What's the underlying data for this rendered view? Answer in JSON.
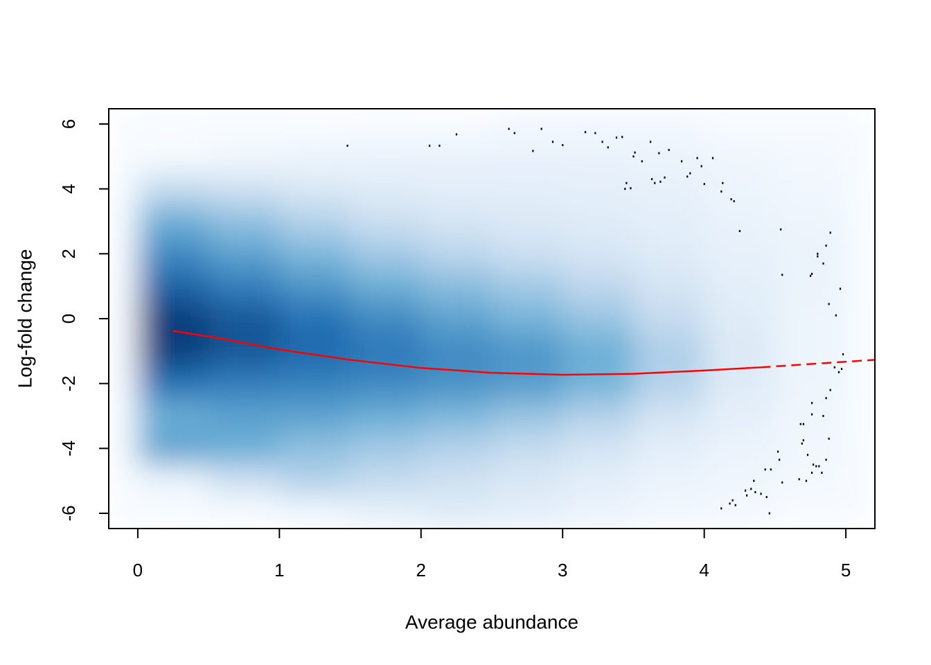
{
  "chart_data": {
    "type": "smoothscatter",
    "xlabel": "Average abundance",
    "ylabel": "Log-fold change",
    "xlim": [
      -0.205,
      5.205
    ],
    "ylim": [
      -6.47,
      6.47
    ],
    "xticks": [
      0,
      1,
      2,
      3,
      4,
      5
    ],
    "yticks": [
      -6,
      -4,
      -2,
      0,
      2,
      4,
      6
    ],
    "colors": [
      "#f7fbff",
      "#c6dbef",
      "#6baed6",
      "#2171b5",
      "#08306b"
    ],
    "density": {
      "x": [
        0.25,
        0.75,
        1.25,
        1.75,
        2.25,
        2.75,
        3.25,
        3.75,
        4.25,
        4.75
      ],
      "y": [
        6,
        5,
        4,
        3,
        2,
        1,
        0,
        -1,
        -2,
        -3,
        -4,
        -5,
        -6
      ],
      "values": [
        [
          0,
          0,
          0,
          0,
          0,
          0.02,
          0.02,
          0.02,
          0,
          0
        ],
        [
          0,
          0.03,
          0.05,
          0.06,
          0.07,
          0.07,
          0.07,
          0.06,
          0.04,
          0.02
        ],
        [
          0.25,
          0.2,
          0.15,
          0.12,
          0.1,
          0.1,
          0.09,
          0.08,
          0.05,
          0.03
        ],
        [
          0.5,
          0.4,
          0.3,
          0.22,
          0.17,
          0.14,
          0.12,
          0.1,
          0.07,
          0.05
        ],
        [
          0.65,
          0.55,
          0.45,
          0.35,
          0.28,
          0.22,
          0.17,
          0.12,
          0.08,
          0.06
        ],
        [
          0.8,
          0.7,
          0.6,
          0.5,
          0.42,
          0.35,
          0.27,
          0.18,
          0.1,
          0.06
        ],
        [
          0.95,
          0.85,
          0.75,
          0.65,
          0.55,
          0.47,
          0.38,
          0.25,
          0.12,
          0.05
        ],
        [
          0.95,
          0.85,
          0.78,
          0.72,
          0.65,
          0.6,
          0.5,
          0.32,
          0.14,
          0.05
        ],
        [
          0.75,
          0.7,
          0.68,
          0.66,
          0.62,
          0.58,
          0.48,
          0.3,
          0.13,
          0.05
        ],
        [
          0.5,
          0.55,
          0.55,
          0.5,
          0.45,
          0.38,
          0.3,
          0.18,
          0.09,
          0.04
        ],
        [
          0.55,
          0.5,
          0.4,
          0.35,
          0.3,
          0.25,
          0.18,
          0.1,
          0.06,
          0.03
        ],
        [
          0.05,
          0.2,
          0.3,
          0.25,
          0.2,
          0.15,
          0.1,
          0.06,
          0.04,
          0.02
        ],
        [
          0,
          0,
          0.02,
          0.08,
          0.12,
          0.1,
          0.06,
          0.03,
          0.02,
          0
        ]
      ]
    },
    "points": {
      "color": "#000000",
      "x": [
        1.48,
        2.06,
        2.13,
        2.25,
        2.62,
        2.66,
        2.79,
        2.85,
        2.93,
        3.0,
        3.16,
        3.23,
        3.28,
        3.32,
        3.38,
        3.42,
        3.44,
        3.45,
        3.48,
        3.5,
        3.51,
        3.56,
        3.62,
        3.63,
        3.65,
        3.68,
        3.69,
        3.72,
        3.75,
        3.84,
        3.88,
        3.9,
        3.95,
        3.98,
        4.0,
        4.06,
        4.12,
        4.13,
        4.19,
        4.21,
        4.25,
        4.54,
        4.55,
        4.75,
        4.76,
        4.8,
        4.8,
        4.84,
        4.86,
        4.89,
        4.88,
        4.93,
        4.96,
        4.97,
        4.98,
        4.92,
        4.95,
        4.89,
        4.86,
        4.84,
        4.88,
        4.86,
        4.76,
        4.76,
        4.7,
        4.68,
        4.7,
        4.69,
        4.73,
        4.77,
        4.76,
        4.79,
        4.81,
        4.83,
        4.67,
        4.72,
        4.55,
        4.52,
        4.53,
        4.47,
        4.43,
        4.35,
        4.29,
        4.3,
        4.33,
        4.36,
        4.4,
        4.44,
        4.46,
        4.18,
        4.2,
        4.22,
        4.12
      ],
      "y": [
        5.33,
        5.33,
        5.33,
        5.68,
        5.85,
        5.72,
        5.17,
        5.85,
        5.45,
        5.35,
        5.75,
        5.72,
        5.45,
        5.28,
        5.58,
        5.6,
        4.0,
        4.18,
        4.02,
        5.0,
        5.12,
        4.85,
        5.45,
        4.3,
        4.18,
        5.1,
        4.22,
        4.35,
        5.2,
        4.85,
        4.38,
        4.48,
        4.95,
        4.7,
        4.15,
        4.95,
        3.92,
        4.18,
        3.68,
        3.62,
        2.7,
        2.75,
        1.35,
        1.32,
        1.38,
        2.0,
        1.92,
        1.7,
        2.25,
        2.65,
        0.45,
        0.1,
        0.92,
        -1.55,
        -1.1,
        -1.5,
        -1.65,
        -2.2,
        -2.45,
        -3.0,
        -3.7,
        -4.35,
        -2.6,
        -2.95,
        -3.25,
        -3.25,
        -3.75,
        -3.85,
        -4.2,
        -4.5,
        -4.75,
        -4.55,
        -4.55,
        -4.75,
        -4.95,
        -5.0,
        -5.05,
        -4.1,
        -4.35,
        -4.65,
        -4.65,
        -5.0,
        -5.3,
        -5.45,
        -5.25,
        -5.35,
        -5.4,
        -5.5,
        -6.0,
        -5.7,
        -5.6,
        -5.75,
        -5.85
      ]
    },
    "lines": [
      {
        "color": "#ff0000",
        "dashed": false,
        "x": [
          0.25,
          0.5,
          1.0,
          1.5,
          2.0,
          2.5,
          3.0,
          3.5,
          4.0,
          4.4
        ],
        "y": [
          -0.38,
          -0.55,
          -0.95,
          -1.27,
          -1.52,
          -1.67,
          -1.73,
          -1.7,
          -1.6,
          -1.5
        ]
      },
      {
        "color": "#ff0000",
        "dashed": true,
        "x": [
          4.4,
          5.2
        ],
        "y": [
          -1.5,
          -1.27
        ]
      }
    ]
  }
}
